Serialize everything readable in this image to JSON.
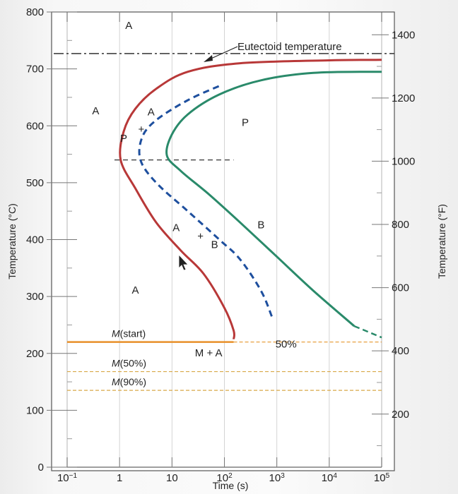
{
  "chart_data": {
    "type": "line",
    "title": "",
    "xlabel": "Time (s)",
    "ylabel": "Temperature (°C)",
    "y2label": "Temperature (°F)",
    "x_scale": "log",
    "xlim": [
      0.1,
      100000
    ],
    "ylim": [
      0,
      800
    ],
    "x_ticks": [
      {
        "value": 0.1,
        "base": "10",
        "exp": "−1"
      },
      {
        "value": 1,
        "base": "1",
        "exp": ""
      },
      {
        "value": 10,
        "base": "10",
        "exp": ""
      },
      {
        "value": 100,
        "base": "10",
        "exp": "2"
      },
      {
        "value": 1000,
        "base": "10",
        "exp": "3"
      },
      {
        "value": 10000,
        "base": "10",
        "exp": "4"
      },
      {
        "value": 100000,
        "base": "10",
        "exp": "5"
      }
    ],
    "y_ticks": [
      0,
      100,
      200,
      300,
      400,
      500,
      600,
      700,
      800
    ],
    "y2_ticks": [
      200,
      400,
      600,
      800,
      1000,
      1200,
      1400
    ],
    "eutectoid": {
      "label": "Eutectoid temperature",
      "temperature": 727
    },
    "series": [
      {
        "id": "start",
        "color": "#b83838",
        "style": "solid",
        "points": [
          [
            150,
            225
          ],
          [
            150,
            240
          ],
          [
            100,
            280
          ],
          [
            40,
            340
          ],
          [
            15,
            380
          ],
          [
            5,
            430
          ],
          [
            2,
            490
          ],
          [
            1.05,
            540
          ],
          [
            1.2,
            590
          ],
          [
            2,
            630
          ],
          [
            5,
            665
          ],
          [
            20,
            695
          ],
          [
            200,
            710
          ],
          [
            10000,
            715
          ],
          [
            100000,
            716
          ]
        ]
      },
      {
        "id": "fifty",
        "color": "#1e4f9e",
        "style": "dashed",
        "name": "50%",
        "points": [
          [
            800,
            265
          ],
          [
            500,
            310
          ],
          [
            200,
            365
          ],
          [
            80,
            400
          ],
          [
            20,
            450
          ],
          [
            5,
            500
          ],
          [
            2.5,
            540
          ],
          [
            2.7,
            580
          ],
          [
            5,
            610
          ],
          [
            20,
            645
          ],
          [
            90,
            672
          ]
        ]
      },
      {
        "id": "end",
        "color": "#2a8a6a",
        "style": "solid",
        "points": [
          [
            30000,
            248
          ],
          [
            5000,
            310
          ],
          [
            1000,
            370
          ],
          [
            200,
            430
          ],
          [
            50,
            480
          ],
          [
            15,
            520
          ],
          [
            8,
            548
          ],
          [
            10,
            585
          ],
          [
            20,
            620
          ],
          [
            80,
            655
          ],
          [
            500,
            680
          ],
          [
            5000,
            693
          ],
          [
            100000,
            695
          ]
        ]
      }
    ],
    "extension": {
      "color": "#2a8a6a",
      "points": [
        [
          30000,
          248
        ],
        [
          100000,
          228
        ]
      ]
    },
    "dashed_guide": {
      "points": [
        [
          0.8,
          540
        ],
        [
          150,
          540
        ]
      ]
    },
    "m_lines": [
      {
        "id": "m-start",
        "temperature": 220,
        "label": "M",
        "suffix": "(start)"
      },
      {
        "id": "m-50",
        "temperature": 168,
        "label": "M",
        "suffix": "(50%)"
      },
      {
        "id": "m-90",
        "temperature": 135,
        "label": "M",
        "suffix": "(90%)"
      }
    ],
    "region_labels": [
      {
        "text": "A",
        "x": 1.5,
        "y": 770
      },
      {
        "text": "A",
        "x": 0.35,
        "y": 620
      },
      {
        "text": "P",
        "x": 250,
        "y": 600
      },
      {
        "text": "B",
        "x": 500,
        "y": 420
      },
      {
        "text": "A",
        "x": 2,
        "y": 305
      },
      {
        "text": "M + A",
        "x": 50,
        "y": 195
      },
      {
        "text": "50%",
        "x": 1500,
        "y": 210
      }
    ],
    "annotations": [
      {
        "text": "A",
        "x": 4,
        "y": 618
      },
      {
        "text": "P",
        "x": 1.2,
        "y": 572
      },
      {
        "text": "A",
        "x": 12,
        "y": 415
      },
      {
        "text": "B",
        "x": 65,
        "y": 385
      }
    ]
  }
}
